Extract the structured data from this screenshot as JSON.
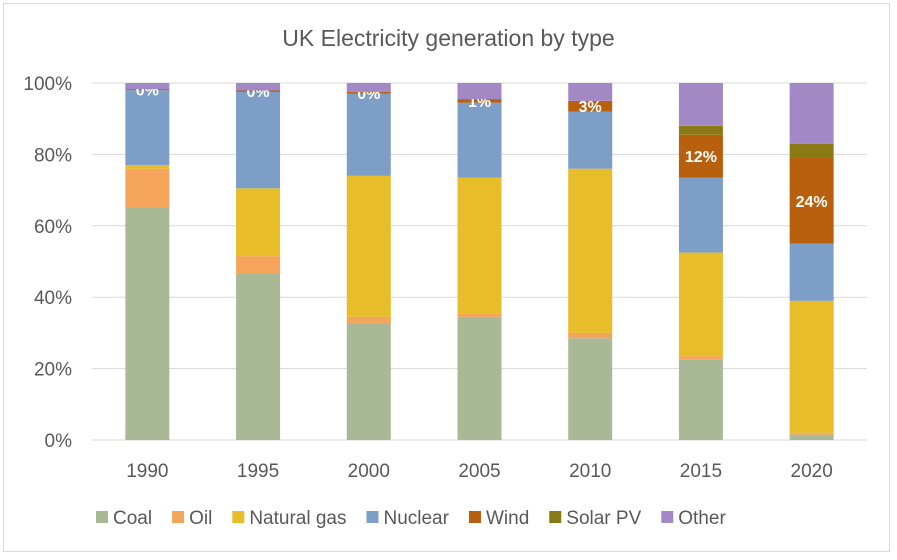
{
  "chart_data": {
    "type": "bar",
    "stacked": true,
    "title": "UK Electricity generation by type",
    "categories": [
      "1990",
      "1995",
      "2000",
      "2005",
      "2010",
      "2015",
      "2020"
    ],
    "y_ticks": [
      "0%",
      "20%",
      "40%",
      "60%",
      "80%",
      "100%"
    ],
    "ylim": [
      0,
      100
    ],
    "grid": true,
    "legend_position": "bottom",
    "series": [
      {
        "name": "Coal",
        "color": "#a9b996",
        "values": [
          65,
          46.5,
          32.5,
          34.5,
          28.5,
          22.5,
          1.5
        ]
      },
      {
        "name": "Oil",
        "color": "#f4a55b",
        "values": [
          11,
          5,
          2,
          1,
          1.5,
          1,
          0.5
        ]
      },
      {
        "name": "Natural gas",
        "color": "#e8bd2a",
        "values": [
          1,
          19,
          39.5,
          38,
          46,
          29,
          37
        ]
      },
      {
        "name": "Nuclear",
        "color": "#7d9ec6",
        "values": [
          21,
          27,
          23,
          21,
          16,
          21,
          16
        ]
      },
      {
        "name": "Wind",
        "color": "#b8600e",
        "values": [
          0.3,
          0.4,
          0.5,
          1,
          3,
          12,
          24
        ]
      },
      {
        "name": "Solar PV",
        "color": "#8a7a16",
        "values": [
          0,
          0,
          0,
          0,
          0,
          2.5,
          4
        ]
      },
      {
        "name": "Other",
        "color": "#a388c6",
        "values": [
          1.7,
          2.1,
          2.5,
          4.5,
          5,
          12,
          17
        ]
      }
    ],
    "data_labels": {
      "series": "Wind",
      "labels": [
        "0%",
        "0%",
        "0%",
        "1%",
        "3%",
        "12%",
        "24%"
      ]
    }
  }
}
